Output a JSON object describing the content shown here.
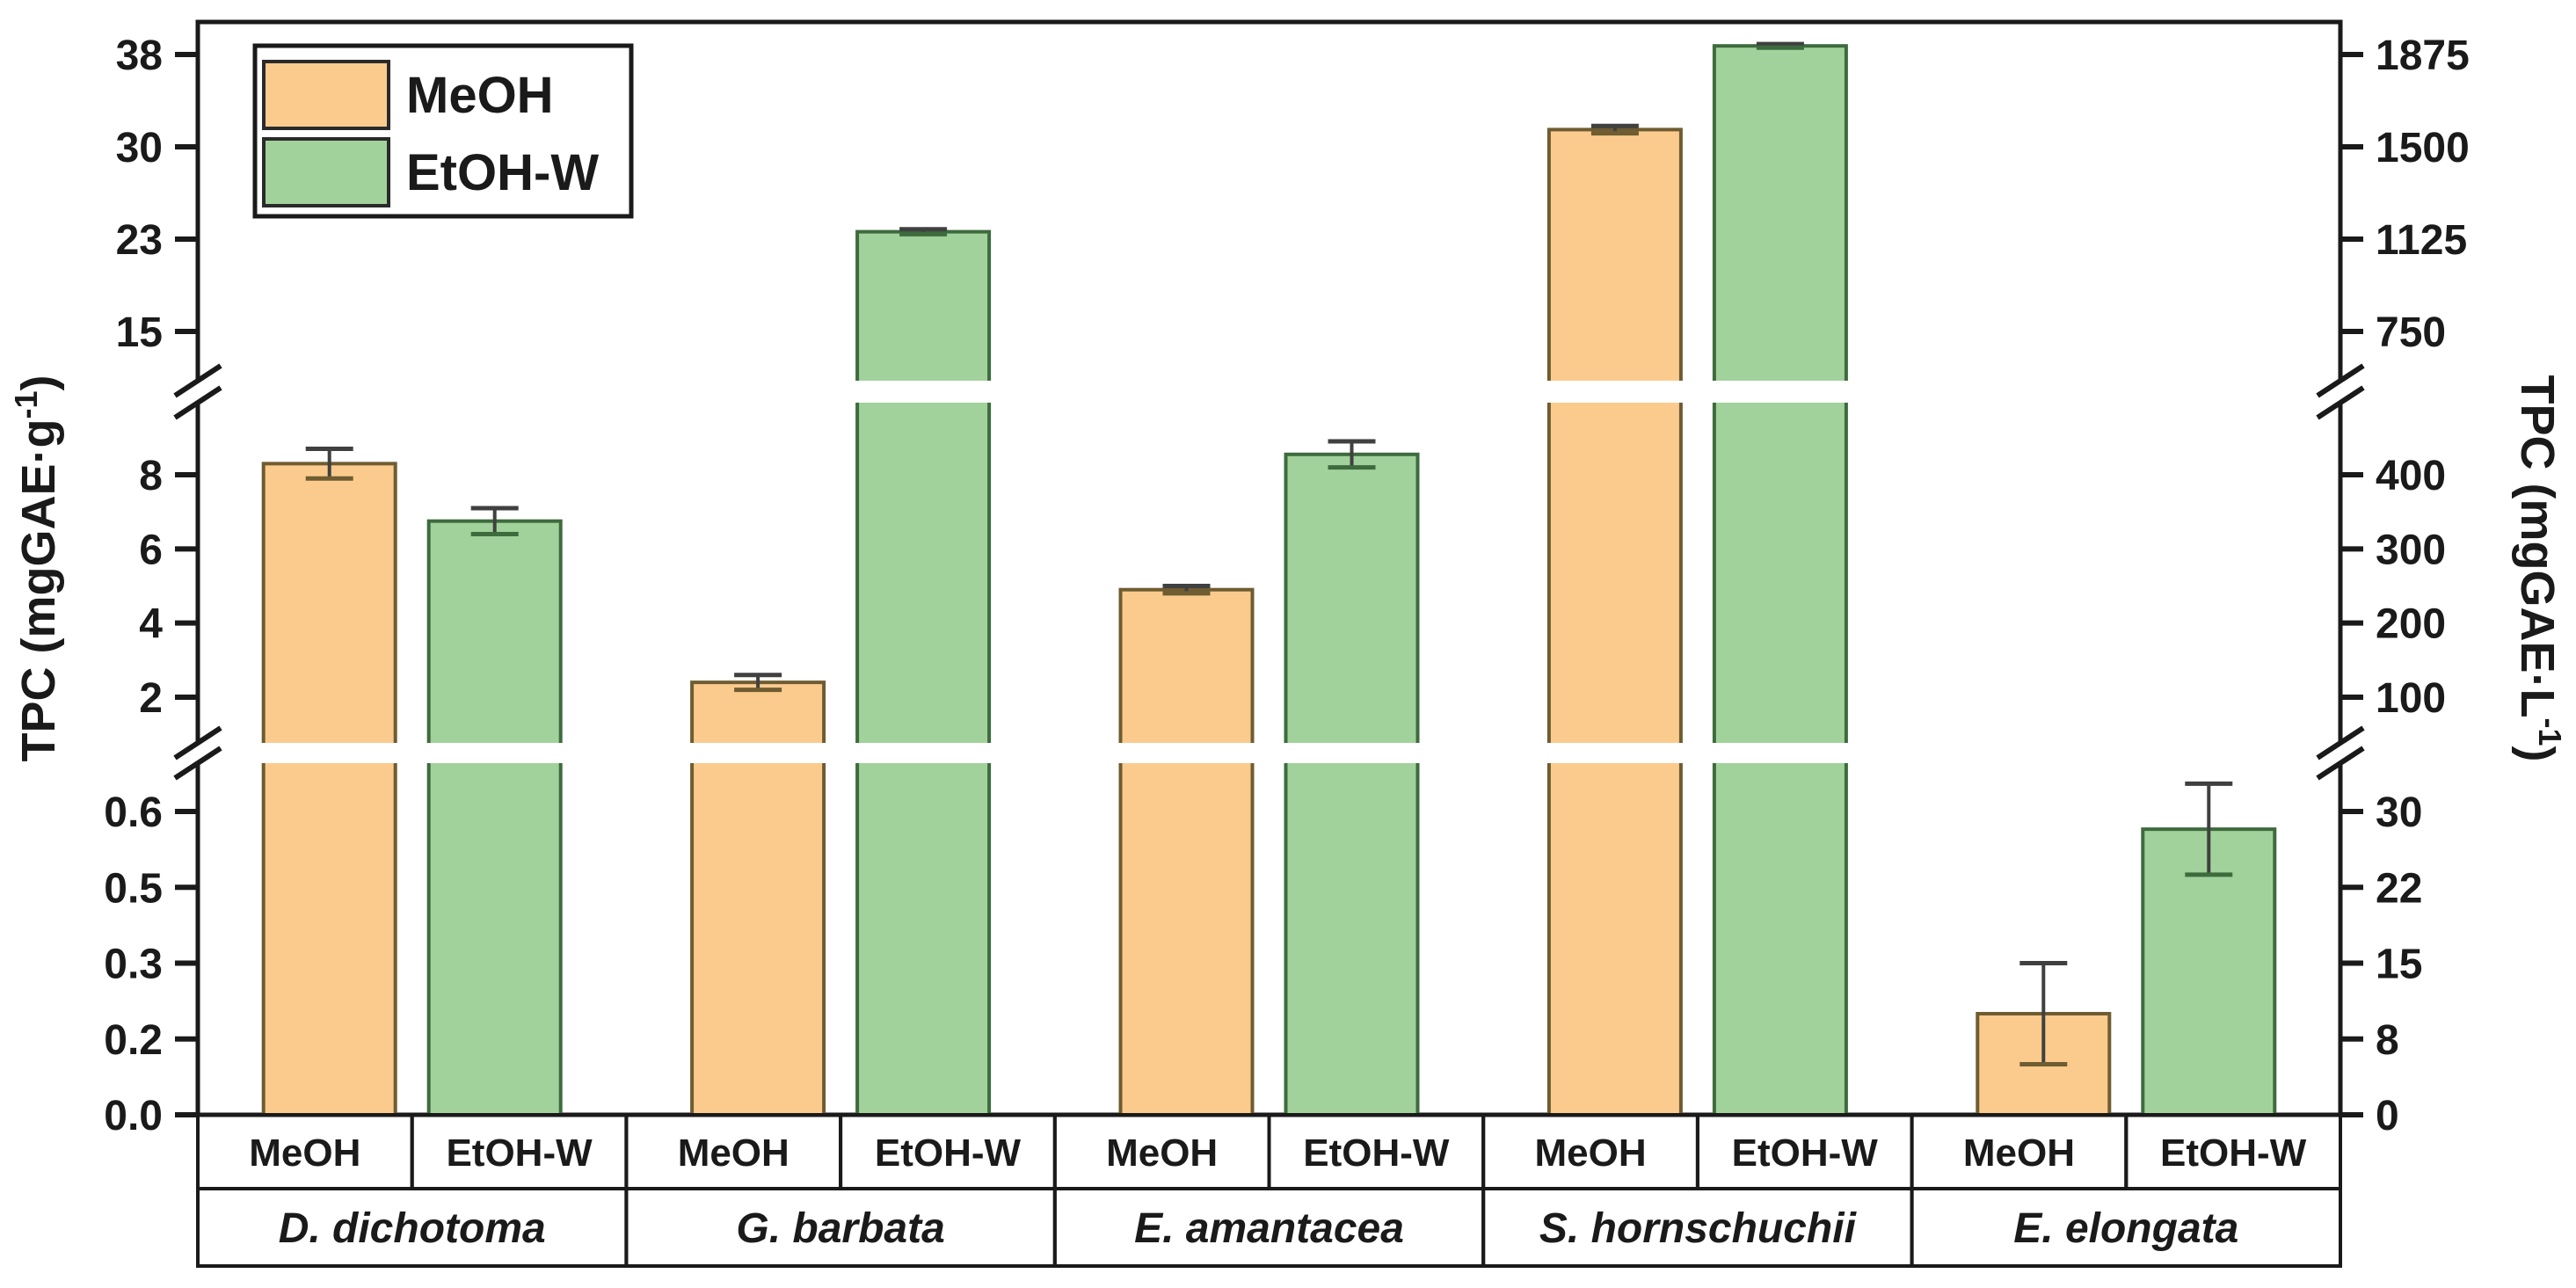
{
  "chart_data": {
    "type": "bar",
    "title": "",
    "categories": [
      "D. dichotoma",
      "G. barbata",
      "E. amantacea",
      "S. hornschuchii",
      "E. elongata"
    ],
    "series": [
      {
        "name": "MeOH",
        "fill": "#FBCB8E",
        "border": "#6F5C31",
        "values": [
          8.3,
          2.4,
          4.9,
          31.4,
          0.2
        ],
        "errors": [
          0.4,
          0.2,
          0.1,
          0.3,
          0.1
        ]
      },
      {
        "name": "EtOH-W",
        "fill": "#A2D29B",
        "border": "#3E6B3E",
        "values": [
          6.75,
          23.1,
          8.55,
          38.2,
          0.565
        ],
        "errors": [
          0.35,
          0.2,
          0.35,
          0.15,
          0.09
        ]
      }
    ],
    "left_axis": {
      "label": "TPC (mgGAE·g⁻¹)",
      "label_parts": {
        "prefix": "TPC (mgGAE·g",
        "sup": "-1",
        "suffix": ")"
      },
      "segments": [
        {
          "ticks": [
            {
              "v": 15,
              "label": "15"
            },
            {
              "v": 22.5,
              "label": "23"
            },
            {
              "v": 30,
              "label": "30"
            },
            {
              "v": 37.5,
              "label": "38"
            }
          ]
        },
        {
          "ticks": [
            {
              "v": 2,
              "label": "2"
            },
            {
              "v": 4,
              "label": "4"
            },
            {
              "v": 6,
              "label": "6"
            },
            {
              "v": 8,
              "label": "8"
            }
          ]
        },
        {
          "ticks": [
            {
              "v": 0,
              "label": "0.0"
            },
            {
              "v": 0.15,
              "label": "0.2"
            },
            {
              "v": 0.3,
              "label": "0.3"
            },
            {
              "v": 0.45,
              "label": "0.5"
            },
            {
              "v": 0.6,
              "label": "0.6"
            }
          ]
        }
      ]
    },
    "right_axis": {
      "label": "TPC (mgGAE·L⁻¹)",
      "label_parts": {
        "prefix": "TPC (mgGAE·L",
        "sup": "-1",
        "suffix": ")"
      },
      "ratio_to_left": 50,
      "segments": [
        {
          "ticks": [
            {
              "v": 15,
              "label": "750"
            },
            {
              "v": 22.5,
              "label": "1125"
            },
            {
              "v": 30,
              "label": "1500"
            },
            {
              "v": 37.5,
              "label": "1875"
            }
          ]
        },
        {
          "ticks": [
            {
              "v": 2,
              "label": "100"
            },
            {
              "v": 4,
              "label": "200"
            },
            {
              "v": 6,
              "label": "300"
            },
            {
              "v": 8,
              "label": "400"
            }
          ]
        },
        {
          "ticks": [
            {
              "v": 0,
              "label": "0"
            },
            {
              "v": 0.15,
              "label": "8"
            },
            {
              "v": 0.3,
              "label": "15"
            },
            {
              "v": 0.45,
              "label": "22"
            },
            {
              "v": 0.6,
              "label": "30"
            }
          ]
        }
      ]
    },
    "legend": {
      "position": "top-left",
      "items": [
        {
          "label": "MeOH",
          "fill": "#FBCB8E",
          "border": "#6F5C31"
        },
        {
          "label": "EtOH-W",
          "fill": "#A2D29B",
          "border": "#3E6B3E"
        }
      ]
    },
    "x_table": {
      "solvent_row": [
        "MeOH",
        "EtOH-W",
        "MeOH",
        "EtOH-W",
        "MeOH",
        "EtOH-W",
        "MeOH",
        "EtOH-W",
        "MeOH",
        "EtOH-W"
      ],
      "species_row": [
        "D. dichotoma",
        "G. barbata",
        "E. amantacea",
        "S. hornschuchii",
        "E. elongata"
      ]
    },
    "axis_breaks": 2,
    "grid": false,
    "colors": {
      "error": "#404040",
      "frame": "#1a1a1a",
      "background": "#ffffff"
    }
  }
}
